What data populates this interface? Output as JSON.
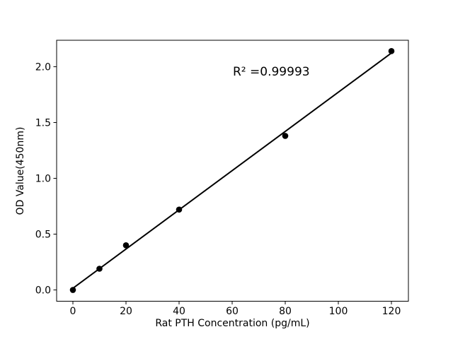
{
  "figure": {
    "background_color": "#ffffff",
    "foreground_color": "#000000"
  },
  "chart_data": {
    "type": "scatter",
    "title": "",
    "xlabel": "Rat PTH Concentration (pg/mL)",
    "ylabel": "OD Value(450nm)",
    "annotation": "R² =0.99993",
    "x": [
      0,
      10,
      20,
      40,
      80,
      120
    ],
    "y": [
      0.0,
      0.19,
      0.4,
      0.72,
      1.38,
      2.14
    ],
    "fit_line": {
      "x_start": 0,
      "y_start": 0.015,
      "x_end": 120,
      "y_end": 2.123
    },
    "xticks": [
      0,
      20,
      40,
      60,
      80,
      100,
      120
    ],
    "xtick_labels": [
      "0",
      "20",
      "40",
      "60",
      "80",
      "100",
      "120"
    ],
    "yticks": [
      0.0,
      0.5,
      1.0,
      1.5,
      2.0
    ],
    "ytick_labels": [
      "0.0",
      "0.5",
      "1.0",
      "1.5",
      "2.0"
    ],
    "xlim": [
      -6.13,
      126.4
    ],
    "ylim": [
      -0.101,
      2.237
    ],
    "grid": false,
    "legend": "none",
    "marker": "circle",
    "marker_color": "#000000",
    "line_color": "#000000"
  }
}
